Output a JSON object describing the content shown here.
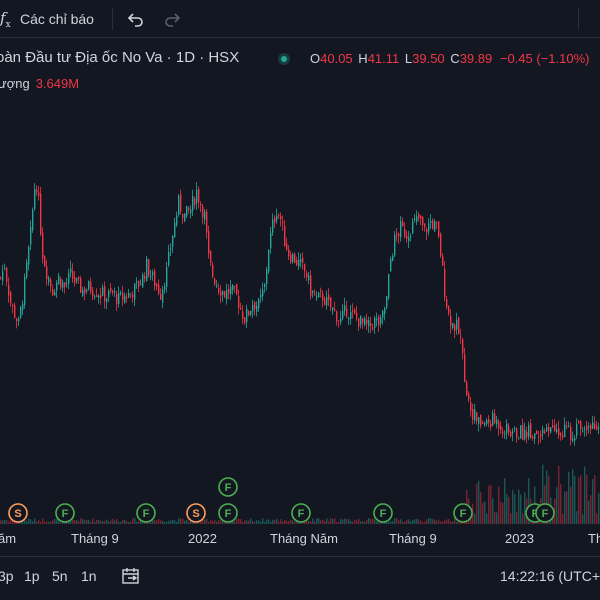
{
  "toolbar": {
    "fx_label": "f",
    "fx_sub": "x",
    "indicators_label": "Các chỉ báo",
    "icons": [
      "function-icon",
      "undo-icon",
      "redo-icon"
    ]
  },
  "legend": {
    "title": "oàn Đầu tư Địa ốc No Va · 1D · HSX",
    "status_color": "#26a69a",
    "ohlc": {
      "o_label": "O",
      "o_value": "40.05",
      "h_label": "H",
      "h_value": "41.11",
      "l_label": "L",
      "l_value": "39.50",
      "c_label": "C",
      "c_value": "39.89",
      "change": "−0.45 (−1.10%)"
    },
    "volume_label": "ượng",
    "volume_value": "3.649M"
  },
  "colors": {
    "background": "#131722",
    "up": "#26a69a",
    "down": "#f23645",
    "dividend_marker": "#ff9d5c",
    "earnings_marker": "#4caf50"
  },
  "xaxis": {
    "labels": [
      "ăm",
      "Tháng 9",
      "2022",
      "Tháng Năm",
      "Tháng 9",
      "2023",
      "Th"
    ]
  },
  "bottom": {
    "ranges": [
      "3p",
      "1p",
      "5n",
      "1n"
    ],
    "time": "14:22:16 (UTC+"
  },
  "markers": [
    {
      "letter": "S",
      "kind": "dividend"
    },
    {
      "letter": "F",
      "kind": "earnings"
    },
    {
      "letter": "F",
      "kind": "earnings"
    },
    {
      "letter": "S",
      "kind": "dividend"
    },
    {
      "letter": "F",
      "kind": "earnings"
    },
    {
      "letter": "F",
      "kind": "earnings"
    },
    {
      "letter": "F",
      "kind": "earnings"
    },
    {
      "letter": "F",
      "kind": "earnings"
    },
    {
      "letter": "F",
      "kind": "earnings"
    },
    {
      "letter": "F",
      "kind": "earnings"
    },
    {
      "letter": "F",
      "kind": "earnings"
    }
  ],
  "chart_data": {
    "type": "candlestick",
    "price_path": [
      [
        0,
        62
      ],
      [
        4,
        66
      ],
      [
        10,
        54
      ],
      [
        18,
        47
      ],
      [
        24,
        60
      ],
      [
        30,
        76
      ],
      [
        35,
        95
      ],
      [
        38,
        86
      ],
      [
        42,
        70
      ],
      [
        46,
        64
      ],
      [
        52,
        58
      ],
      [
        58,
        62
      ],
      [
        64,
        59
      ],
      [
        70,
        63
      ],
      [
        76,
        60
      ],
      [
        82,
        58
      ],
      [
        88,
        59
      ],
      [
        94,
        58
      ],
      [
        100,
        57
      ],
      [
        106,
        56
      ],
      [
        112,
        57
      ],
      [
        118,
        55
      ],
      [
        124,
        56
      ],
      [
        130,
        57
      ],
      [
        136,
        59
      ],
      [
        142,
        62
      ],
      [
        146,
        66
      ],
      [
        150,
        63
      ],
      [
        155,
        60
      ],
      [
        160,
        57
      ],
      [
        166,
        64
      ],
      [
        172,
        76
      ],
      [
        178,
        86
      ],
      [
        184,
        82
      ],
      [
        190,
        84
      ],
      [
        196,
        90
      ],
      [
        200,
        86
      ],
      [
        204,
        82
      ],
      [
        208,
        68
      ],
      [
        212,
        63
      ],
      [
        218,
        59
      ],
      [
        224,
        57
      ],
      [
        230,
        58
      ],
      [
        236,
        56
      ],
      [
        240,
        52
      ],
      [
        244,
        49
      ],
      [
        248,
        51
      ],
      [
        252,
        54
      ],
      [
        258,
        53
      ],
      [
        264,
        59
      ],
      [
        268,
        72
      ],
      [
        272,
        79
      ],
      [
        276,
        84
      ],
      [
        280,
        81
      ],
      [
        284,
        74
      ],
      [
        288,
        70
      ],
      [
        294,
        68
      ],
      [
        300,
        66
      ],
      [
        306,
        63
      ],
      [
        310,
        58
      ],
      [
        316,
        55
      ],
      [
        322,
        56
      ],
      [
        328,
        53
      ],
      [
        334,
        51
      ],
      [
        340,
        48
      ],
      [
        346,
        52
      ],
      [
        350,
        50
      ],
      [
        356,
        49
      ],
      [
        362,
        47
      ],
      [
        368,
        46
      ],
      [
        374,
        48
      ],
      [
        380,
        47
      ],
      [
        386,
        55
      ],
      [
        390,
        68
      ],
      [
        394,
        74
      ],
      [
        400,
        78
      ],
      [
        406,
        76
      ],
      [
        412,
        79
      ],
      [
        418,
        81
      ],
      [
        424,
        77
      ],
      [
        430,
        80
      ],
      [
        436,
        78
      ],
      [
        440,
        70
      ],
      [
        444,
        58
      ],
      [
        448,
        50
      ],
      [
        452,
        47
      ],
      [
        456,
        46
      ],
      [
        460,
        42
      ],
      [
        463,
        33
      ],
      [
        466,
        26
      ],
      [
        470,
        20
      ],
      [
        476,
        16
      ],
      [
        480,
        15
      ],
      [
        486,
        15
      ],
      [
        492,
        16
      ],
      [
        498,
        15
      ],
      [
        504,
        13
      ],
      [
        510,
        12
      ],
      [
        516,
        12
      ],
      [
        522,
        12
      ],
      [
        528,
        13
      ],
      [
        534,
        12
      ],
      [
        540,
        13
      ],
      [
        546,
        12
      ],
      [
        552,
        13
      ],
      [
        558,
        12
      ],
      [
        564,
        13
      ],
      [
        570,
        12
      ],
      [
        576,
        13
      ],
      [
        582,
        14
      ],
      [
        588,
        16
      ],
      [
        594,
        14
      ],
      [
        600,
        15
      ]
    ]
  }
}
